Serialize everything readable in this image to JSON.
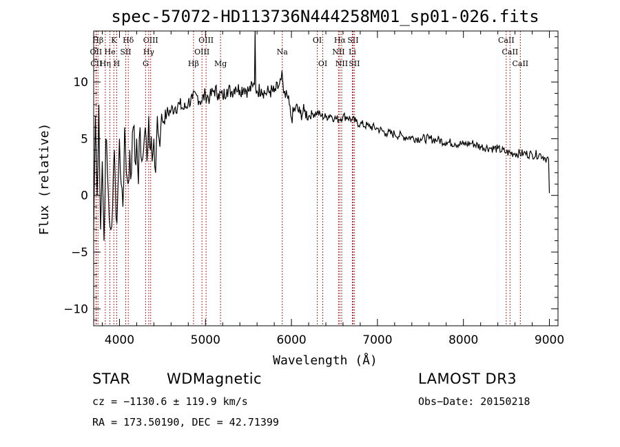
{
  "chart_data": {
    "type": "line",
    "title": "spec-57072-HD113736N444258M01_sp01-026.fits",
    "xlabel": "Wavelength (Å)",
    "ylabel": "Flux (relative)",
    "xlim": [
      3700,
      9100
    ],
    "ylim": [
      -11.5,
      14.5
    ],
    "xticks": [
      4000,
      5000,
      6000,
      7000,
      8000,
      9000
    ],
    "xtick_labels": [
      "4000",
      "5000",
      "6000",
      "7000",
      "8000",
      "9000"
    ],
    "yticks": [
      -10,
      -5,
      0,
      5,
      10
    ],
    "ytick_labels": [
      "−10",
      "−5",
      "0",
      "5",
      "10"
    ],
    "series": [
      {
        "name": "flux",
        "x": [
          3700,
          3720,
          3740,
          3760,
          3780,
          3800,
          3820,
          3840,
          3860,
          3880,
          3900,
          3920,
          3940,
          3960,
          3980,
          4000,
          4020,
          4040,
          4060,
          4080,
          4100,
          4120,
          4140,
          4160,
          4180,
          4200,
          4220,
          4240,
          4260,
          4280,
          4300,
          4320,
          4340,
          4360,
          4380,
          4400,
          4420,
          4440,
          4460,
          4480,
          4500,
          4550,
          4600,
          4650,
          4700,
          4750,
          4800,
          4850,
          4900,
          4950,
          5000,
          5050,
          5100,
          5150,
          5200,
          5250,
          5300,
          5350,
          5400,
          5450,
          5500,
          5550,
          5570,
          5577,
          5584,
          5600,
          5650,
          5700,
          5750,
          5800,
          5850,
          5880,
          5890,
          5900,
          5910,
          5930,
          5950,
          6000,
          6050,
          6100,
          6150,
          6200,
          6250,
          6300,
          6350,
          6400,
          6450,
          6500,
          6550,
          6600,
          6650,
          6700,
          6750,
          6800,
          6900,
          7000,
          7100,
          7200,
          7300,
          7400,
          7500,
          7600,
          7700,
          7800,
          7900,
          8000,
          8100,
          8200,
          8300,
          8400,
          8500,
          8600,
          8700,
          8800,
          8900,
          8950,
          8990,
          9000
        ],
        "y": [
          -3,
          7,
          0,
          8,
          -3,
          3,
          -4,
          5,
          2,
          -2,
          -3,
          -1,
          4,
          -2,
          0,
          5,
          1,
          -1,
          6,
          2,
          1,
          4,
          2,
          6,
          3,
          5,
          1,
          6,
          3,
          4,
          6,
          3,
          7,
          4,
          3,
          5,
          2,
          7,
          5,
          6,
          6.5,
          7.2,
          7.5,
          7.8,
          8.0,
          7.6,
          8.2,
          8.5,
          8.8,
          8.3,
          8.9,
          8.6,
          9.3,
          9.0,
          8.7,
          9.4,
          9.1,
          9.6,
          9.3,
          9.5,
          9.2,
          9.6,
          9.8,
          17,
          9.4,
          9.2,
          9.4,
          9.0,
          9.2,
          9.1,
          9.6,
          10.2,
          11.0,
          10.0,
          9.0,
          8.6,
          8.8,
          6.8,
          7.8,
          7.2,
          7.4,
          7.0,
          7.2,
          7.3,
          7.0,
          6.9,
          7.1,
          6.8,
          6.7,
          7.0,
          6.9,
          6.7,
          6.5,
          6.3,
          6.1,
          5.9,
          5.5,
          5.4,
          5.2,
          5.1,
          5.0,
          5.0,
          4.9,
          4.7,
          4.6,
          4.5,
          4.6,
          4.3,
          4.2,
          4.1,
          3.8,
          3.7,
          3.7,
          3.6,
          3.6,
          3.3,
          3.2,
          0.2
        ]
      }
    ],
    "line_markers": [
      {
        "label": "Hβ",
        "wavelength": 3750,
        "row": 1
      },
      {
        "label": "OII",
        "wavelength": 3727,
        "row": 2
      },
      {
        "label": "CII",
        "wavelength": 3730,
        "row": 3
      },
      {
        "label": "K",
        "wavelength": 3934,
        "row": 1
      },
      {
        "label": "Hδ",
        "wavelength": 4102,
        "row": 1
      },
      {
        "label": "He",
        "wavelength": 3889,
        "row": 2
      },
      {
        "label": "Hη",
        "wavelength": 3835,
        "row": 3
      },
      {
        "label": "H",
        "wavelength": 3968,
        "row": 3
      },
      {
        "label": "SII",
        "wavelength": 4072,
        "row": 2
      },
      {
        "label": "OIII",
        "wavelength": 4363,
        "row": 1
      },
      {
        "label": "Hγ",
        "wavelength": 4340,
        "row": 2
      },
      {
        "label": "G",
        "wavelength": 4304,
        "row": 3
      },
      {
        "label": "OIII",
        "wavelength": 5007,
        "row": 1
      },
      {
        "label": "OIII",
        "wavelength": 4959,
        "row": 2
      },
      {
        "label": "Hβ",
        "wavelength": 4861,
        "row": 3
      },
      {
        "label": "Mg",
        "wavelength": 5175,
        "row": 3
      },
      {
        "label": "Na",
        "wavelength": 5893,
        "row": 2
      },
      {
        "label": "OI",
        "wavelength": 6300,
        "row": 1
      },
      {
        "label": "OI",
        "wavelength": 6364,
        "row": 3
      },
      {
        "label": "Hα",
        "wavelength": 6563,
        "row": 1
      },
      {
        "label": "SII",
        "wavelength": 6716,
        "row": 1
      },
      {
        "label": "NII",
        "wavelength": 6548,
        "row": 2
      },
      {
        "label": "Li",
        "wavelength": 6708,
        "row": 2
      },
      {
        "label": "NII",
        "wavelength": 6584,
        "row": 3
      },
      {
        "label": "SII",
        "wavelength": 6731,
        "row": 3
      },
      {
        "label": "CaII",
        "wavelength": 8498,
        "row": 1
      },
      {
        "label": "CaII",
        "wavelength": 8542,
        "row": 2
      },
      {
        "label": "CaII",
        "wavelength": 8662,
        "row": 3
      }
    ],
    "marker_color": "#b22222"
  },
  "info": {
    "class_label": "STAR",
    "subclass": "WDMagnetic",
    "survey": "LAMOST DR3",
    "cz": "cz = −1130.6 ± 119.9 km/s",
    "obs_date": "Obs−Date: 20150218",
    "coords": "RA = 173.50190, DEC =  42.71399"
  }
}
